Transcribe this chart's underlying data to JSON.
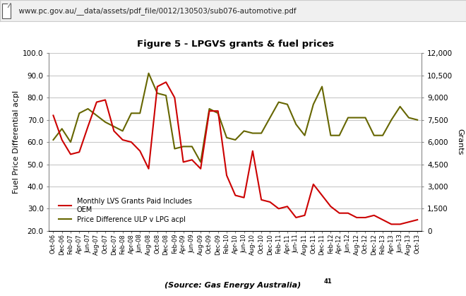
{
  "title": "Figure 5 - LPGVS grants & fuel prices",
  "url_text": "  www.pc.gov.au/__data/assets/pdf_file/0012/130503/sub076-automotive.pdf",
  "source_text": "(Source: Gas Energy Australia)",
  "source_sup": "41",
  "ylabel_left": "Fuel Price Differential acpl",
  "ylabel_right": "Grants",
  "ylim_left": [
    20.0,
    100.0
  ],
  "ylim_right": [
    0,
    12000
  ],
  "yticks_left": [
    20.0,
    30.0,
    40.0,
    50.0,
    60.0,
    70.0,
    80.0,
    90.0,
    100.0
  ],
  "yticks_right": [
    0,
    1500,
    3000,
    4500,
    6000,
    7500,
    9000,
    10500,
    12000
  ],
  "background_color": "#ffffff",
  "plot_bg_color": "#ffffff",
  "grid_color": "#c8c8c8",
  "red_color": "#cc0000",
  "olive_color": "#666600",
  "legend_red_line1": "Monthly LVS Grants Paid Includes",
  "legend_red_line2": "OEM",
  "legend_olive": "Price Difference ULP v LPG acpl",
  "x_labels": [
    "Oct-06",
    "Dec-06",
    "Feb-07",
    "Apr-07",
    "Jun-07",
    "Aug-07",
    "Oct-07",
    "Dec-07",
    "Feb-08",
    "Apr-08",
    "Jun-08",
    "Aug-08",
    "Oct-08",
    "Dec-08",
    "Feb-09",
    "Apr-09",
    "Jun-09",
    "Aug-09",
    "Oct-09",
    "Dec-09",
    "Feb-10",
    "Apr-10",
    "Jun-10",
    "Aug-10",
    "Oct-10",
    "Dec-10",
    "Feb-11",
    "Apr-11",
    "Jun-11",
    "Aug-11",
    "Oct-11",
    "Dec-11",
    "Feb-12",
    "Apr-12",
    "Jun-12",
    "Aug-12",
    "Oct-12",
    "Dec-12",
    "Feb-13",
    "Apr-13",
    "Jun-13",
    "Aug-13",
    "Oct-13"
  ],
  "red_data": [
    72,
    61,
    54.5,
    55.5,
    67,
    78,
    79,
    65,
    61,
    60,
    56,
    48,
    85,
    87,
    80,
    51,
    52,
    48,
    74,
    74,
    45,
    36,
    35,
    56,
    34,
    33,
    30,
    31,
    26,
    27,
    41,
    36,
    31,
    28,
    28,
    26,
    26,
    27,
    25,
    23,
    23,
    24,
    25
  ],
  "olive_data": [
    61,
    66,
    60,
    73,
    75,
    72,
    69,
    67,
    65,
    73,
    73,
    91,
    82,
    81,
    57,
    58,
    58,
    51,
    75,
    73,
    62,
    61,
    65,
    64,
    64,
    71,
    78,
    77,
    68,
    63,
    77,
    85,
    63,
    63,
    71,
    71,
    71,
    63,
    63,
    70,
    76,
    71,
    70
  ],
  "url_bar_color": "#f0f0f0",
  "url_bar_border": "#cccccc",
  "url_icon_color": "#555555"
}
